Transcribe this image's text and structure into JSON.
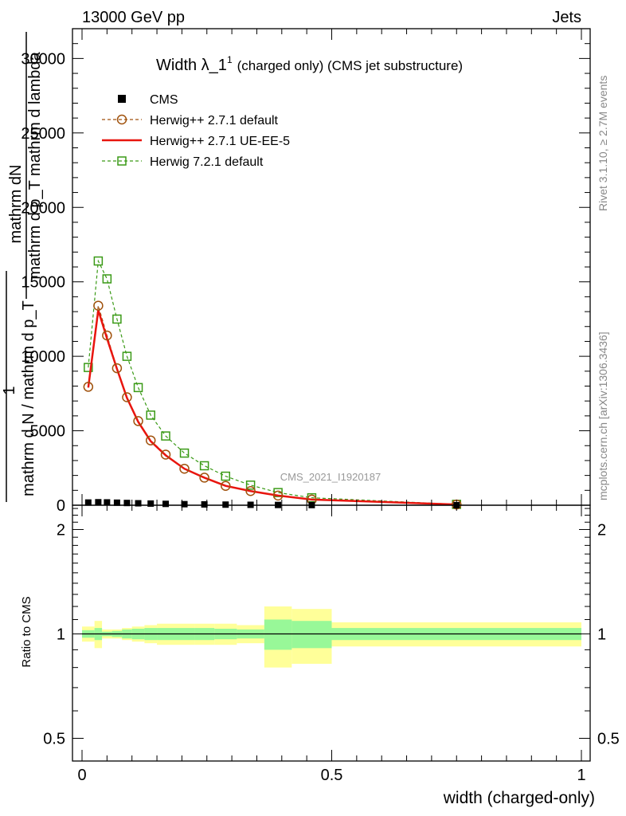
{
  "header": {
    "left": "13000 GeV pp",
    "right": "Jets"
  },
  "side_labels": {
    "rivet": "Rivet 3.1.10, ≥ 2.7M events",
    "mcplots": "mcplots.cern.ch [arXiv:1306.3436]"
  },
  "watermark": "CMS_2021_I1920187",
  "colors": {
    "cms": "#000000",
    "herwig_default": "#a0520d",
    "herwig_ueee5": "#e8150e",
    "herwig_721": "#3a9a16",
    "band_inner": "#98f898",
    "band_outer": "#ffff99"
  },
  "chart_data": {
    "type": "line",
    "title": "Width λ_1",
    "title_sup": "1",
    "title_suffix": "(charged only) (CMS jet substructure)",
    "xlabel": "width (charged-only)",
    "ylabel_main_numer": "mathrm dN",
    "ylabel_main_denom": "mathrm d p_T mathrm d lambda",
    "ylabel_main_one": "1",
    "ylabel_main_frac_denom": "mathrm d N / mathrm d p_T",
    "ylabel_ratio": "Ratio to CMS",
    "xlim": [
      0,
      1
    ],
    "ylim": [
      0,
      32000
    ],
    "ratio_ylim": [
      0.43,
      2.35
    ],
    "x_ticks": [
      {
        "v": 0,
        "label": "0"
      },
      {
        "v": 0.5,
        "label": "0.5"
      },
      {
        "v": 1,
        "label": "1"
      }
    ],
    "y_ticks": [
      {
        "v": 0,
        "label": "0"
      },
      {
        "v": 5000,
        "label": "5000"
      },
      {
        "v": 10000,
        "label": "10000"
      },
      {
        "v": 15000,
        "label": "15000"
      },
      {
        "v": 20000,
        "label": "20000"
      },
      {
        "v": 25000,
        "label": "25000"
      },
      {
        "v": 30000,
        "label": "30000"
      }
    ],
    "ratio_ticks": [
      {
        "v": 0.5,
        "label": "0.5"
      },
      {
        "v": 1,
        "label": "1"
      },
      {
        "v": 2,
        "label": "2"
      }
    ],
    "legend": {
      "cms": "CMS",
      "herwig_default": "Herwig++ 2.7.1 default",
      "herwig_ueee5": "Herwig++ 2.7.1 UE-EE-5",
      "herwig_721": "Herwig 7.2.1 default"
    },
    "bin_edges": [
      0,
      0.025,
      0.04,
      0.06,
      0.08,
      0.1,
      0.125,
      0.15,
      0.185,
      0.225,
      0.265,
      0.31,
      0.365,
      0.42,
      0.5,
      1.0
    ],
    "series": [
      {
        "name": "CMS",
        "x": [
          0.0125,
          0.0325,
          0.05,
          0.07,
          0.09,
          0.1125,
          0.1375,
          0.1675,
          0.205,
          0.245,
          0.2875,
          0.3375,
          0.3925,
          0.46,
          0.75
        ],
        "values": [
          180,
          200,
          190,
          170,
          150,
          130,
          110,
          90,
          70,
          55,
          40,
          28,
          18,
          10,
          2
        ]
      },
      {
        "name": "Herwig++ 2.7.1 default",
        "x": [
          0.0125,
          0.0325,
          0.05,
          0.07,
          0.09,
          0.1125,
          0.1375,
          0.1675,
          0.205,
          0.245,
          0.2875,
          0.3375,
          0.3925,
          0.46,
          0.75
        ],
        "values": [
          7950,
          13400,
          11400,
          9200,
          7250,
          5650,
          4350,
          3400,
          2450,
          1850,
          1300,
          950,
          650,
          380,
          50
        ]
      },
      {
        "name": "Herwig++ 2.7.1 UE-EE-5",
        "x": [
          0.0125,
          0.0325,
          0.05,
          0.07,
          0.09,
          0.1125,
          0.1375,
          0.1675,
          0.205,
          0.245,
          0.2875,
          0.3375,
          0.3925,
          0.46,
          0.75
        ],
        "values": [
          7900,
          13100,
          11200,
          9150,
          7200,
          5600,
          4300,
          3350,
          2450,
          1850,
          1300,
          950,
          650,
          380,
          50
        ]
      },
      {
        "name": "Herwig 7.2.1 default",
        "x": [
          0.0125,
          0.0325,
          0.05,
          0.07,
          0.09,
          0.1125,
          0.1375,
          0.1675,
          0.205,
          0.245,
          0.2875,
          0.3375,
          0.3925,
          0.46,
          0.75
        ],
        "values": [
          9250,
          16400,
          15200,
          12500,
          10000,
          7900,
          6050,
          4650,
          3500,
          2650,
          1950,
          1350,
          850,
          500,
          60
        ]
      }
    ],
    "ratio_band": {
      "inner": [
        0.025,
        0.04,
        0.015,
        0.02,
        0.03,
        0.035,
        0.04,
        0.04,
        0.04,
        0.04,
        0.035,
        0.03,
        0.1,
        0.09,
        0.04
      ],
      "outer": [
        0.05,
        0.09,
        0.03,
        0.03,
        0.04,
        0.05,
        0.06,
        0.07,
        0.07,
        0.07,
        0.07,
        0.06,
        0.2,
        0.18,
        0.08
      ]
    }
  }
}
